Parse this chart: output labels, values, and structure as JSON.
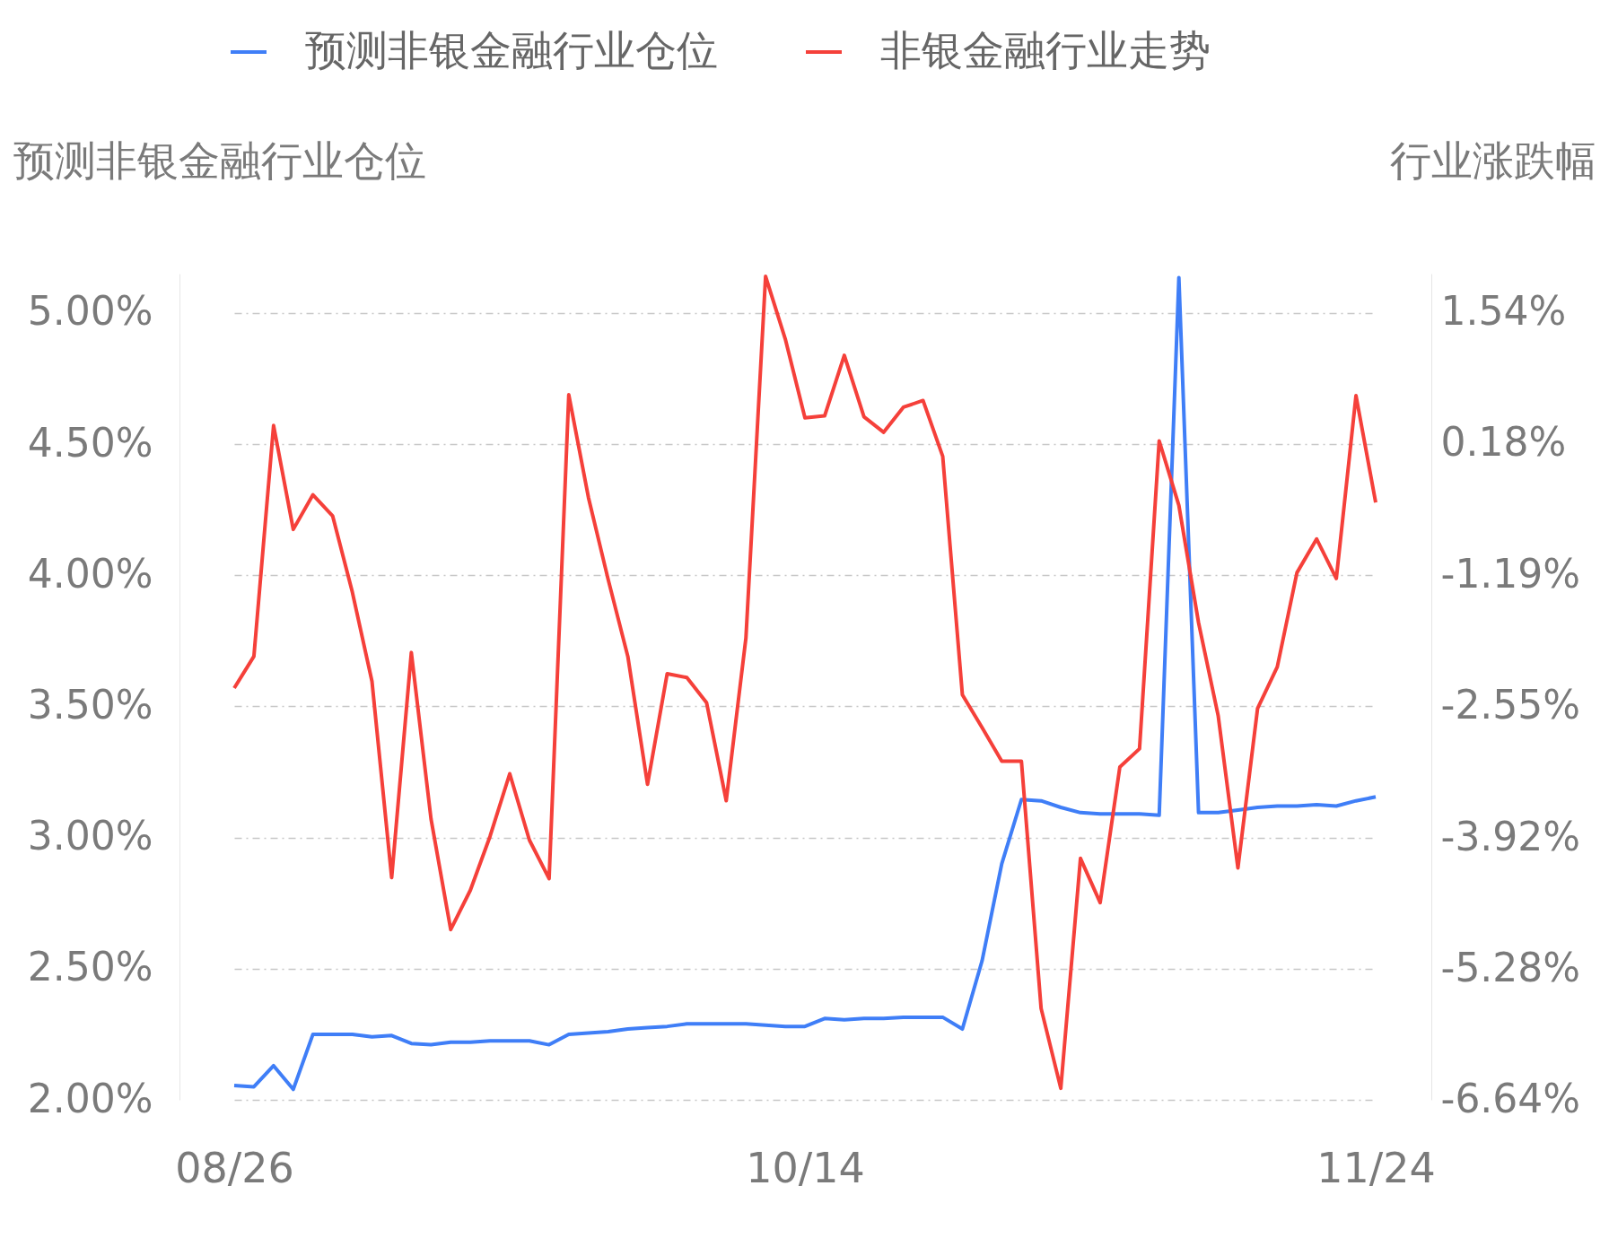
{
  "chart_data": {
    "type": "line",
    "ylabel": "预测非银金融行业仓位",
    "y2label": "行业涨跌幅",
    "categories": [
      "08/26",
      null,
      null,
      null,
      null,
      null,
      null,
      null,
      null,
      null,
      null,
      null,
      null,
      null,
      null,
      null,
      null,
      null,
      null,
      null,
      null,
      null,
      null,
      null,
      null,
      null,
      null,
      null,
      null,
      "10/14",
      null,
      null,
      null,
      null,
      null,
      null,
      null,
      null,
      null,
      null,
      null,
      null,
      null,
      null,
      null,
      null,
      null,
      null,
      null,
      null,
      null,
      null,
      null,
      null,
      null,
      null,
      null,
      null,
      "11/24"
    ],
    "series": [
      {
        "name": "预测非银金融行业仓位",
        "color": "#3f7ef7",
        "values": [
          2.055,
          2.05,
          2.13,
          2.04,
          2.25,
          2.25,
          2.25,
          2.24,
          2.245,
          2.215,
          2.21,
          2.22,
          2.22,
          2.225,
          2.225,
          2.225,
          2.21,
          2.25,
          2.255,
          2.26,
          2.27,
          2.275,
          2.28,
          2.29,
          2.29,
          2.29,
          2.29,
          2.285,
          2.28,
          2.28,
          2.31,
          2.305,
          2.31,
          2.31,
          2.315,
          2.315,
          2.315,
          2.27,
          2.53,
          2.9,
          3.145,
          3.14,
          3.115,
          3.095,
          3.09,
          3.09,
          3.09,
          3.085,
          5.135,
          3.095,
          3.095,
          3.105,
          3.115,
          3.12,
          3.12,
          3.125,
          3.12,
          3.14,
          3.155
        ]
      },
      {
        "name": "非银金融行业走势",
        "color": "#f5403a",
        "axis": "y2",
        "values": [
          -2.36,
          -2.03,
          0.37,
          -0.71,
          -0.35,
          -0.57,
          -1.36,
          -2.29,
          -4.33,
          -1.99,
          -3.72,
          -4.87,
          -4.46,
          -3.9,
          -3.25,
          -3.94,
          -4.34,
          0.69,
          -0.38,
          -1.23,
          -2.03,
          -3.36,
          -2.21,
          -2.25,
          -2.51,
          -3.53,
          -1.84,
          1.92,
          1.27,
          0.45,
          0.47,
          1.1,
          0.46,
          0.3,
          0.56,
          0.63,
          0.05,
          -2.43,
          -2.77,
          -3.12,
          -3.12,
          -5.69,
          -6.52,
          -4.13,
          -4.59,
          -3.18,
          -2.99,
          0.21,
          -0.46,
          -1.68,
          -2.65,
          -4.23,
          -2.57,
          -2.14,
          -1.16,
          -0.81,
          -1.22,
          0.68,
          -0.43
        ]
      }
    ],
    "yticks": [
      {
        "value": 2.0,
        "label": "2.00%"
      },
      {
        "value": 2.5,
        "label": "2.50%"
      },
      {
        "value": 3.0,
        "label": "3.00%"
      },
      {
        "value": 3.5,
        "label": "3.50%"
      },
      {
        "value": 4.0,
        "label": "4.00%"
      },
      {
        "value": 4.5,
        "label": "4.50%"
      },
      {
        "value": 5.0,
        "label": "5.00%"
      }
    ],
    "ylim": [
      2.0,
      5.15
    ],
    "y2lim": [
      -6.64,
      1.949
    ],
    "y2ticks": [
      {
        "value": -6.64,
        "label": "-6.64%"
      },
      {
        "value": -5.28,
        "label": "-5.28%"
      },
      {
        "value": -3.92,
        "label": "-3.92%"
      },
      {
        "value": -2.55,
        "label": "-2.55%"
      },
      {
        "value": -1.19,
        "label": "-1.19%"
      },
      {
        "value": 0.18,
        "label": "0.18%"
      },
      {
        "value": 1.54,
        "label": "1.54%"
      }
    ],
    "grid": "y",
    "legend": "top",
    "marker": "none",
    "line_style": "solid"
  }
}
